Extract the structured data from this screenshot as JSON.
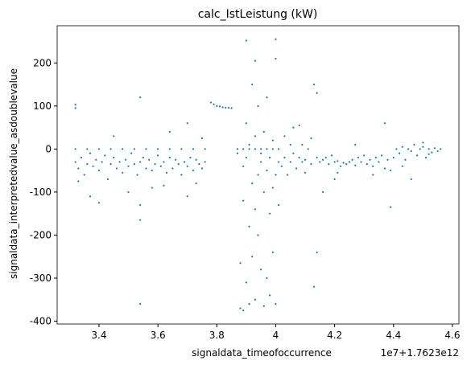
{
  "chart_data": {
    "type": "scatter",
    "title": "calc_IstLeistung (kW)",
    "x_label": "signaldata_timeofoccurrence",
    "y_label": "signaldata_interpretedvalue_asdoublevalue",
    "x_offset_label": "1e7+1.7623e12",
    "x": [
      3.32,
      3.33,
      3.34,
      3.35,
      3.36,
      3.37,
      3.38,
      3.39,
      3.4,
      3.41,
      3.42,
      3.43,
      3.44,
      3.45,
      3.46,
      3.47,
      3.48,
      3.49,
      3.5,
      3.51,
      3.52,
      3.53,
      3.54,
      3.55,
      3.56,
      3.57,
      3.58,
      3.59,
      3.6,
      3.61,
      3.62,
      3.63,
      3.64,
      3.65,
      3.66,
      3.67,
      3.68,
      3.69,
      3.7,
      3.71,
      3.72,
      3.73,
      3.74,
      3.75,
      3.76,
      3.32,
      3.36,
      3.4,
      3.44,
      3.48,
      3.52,
      3.56,
      3.6,
      3.64,
      3.68,
      3.72,
      3.76,
      3.32,
      3.32,
      3.33,
      3.37,
      3.4,
      3.45,
      3.5,
      3.54,
      3.54,
      3.54,
      3.54,
      3.58,
      3.62,
      3.64,
      3.7,
      3.7,
      3.73,
      3.75,
      3.78,
      3.79,
      3.8,
      3.81,
      3.82,
      3.83,
      3.84,
      3.85,
      3.87,
      3.89,
      3.91,
      3.93,
      3.95,
      3.97,
      3.99,
      4.01,
      3.87,
      3.88,
      3.88,
      3.89,
      3.89,
      3.89,
      3.9,
      3.9,
      3.9,
      3.9,
      3.91,
      3.91,
      3.91,
      3.92,
      3.92,
      3.92,
      3.93,
      3.93,
      3.93,
      3.93,
      3.94,
      3.94,
      3.94,
      3.95,
      3.95,
      3.95,
      3.96,
      3.96,
      3.97,
      3.97,
      3.97,
      3.98,
      3.98,
      3.98,
      3.99,
      3.99,
      4.0,
      4.0,
      4.0,
      4.0,
      4.01,
      4.01,
      3.99,
      3.96,
      4.02,
      4.03,
      4.03,
      4.04,
      4.05,
      4.05,
      4.06,
      4.06,
      4.07,
      4.08,
      4.08,
      4.09,
      4.09,
      4.1,
      4.1,
      4.11,
      4.12,
      4.12,
      4.13,
      4.13,
      4.14,
      4.14,
      4.14,
      4.15,
      4.16,
      4.17,
      4.18,
      4.19,
      4.2,
      4.21,
      4.22,
      4.23,
      4.24,
      4.25,
      4.26,
      4.27,
      4.28,
      4.29,
      4.3,
      4.31,
      4.32,
      4.33,
      4.34,
      4.35,
      4.36,
      4.37,
      4.38,
      4.39,
      4.4,
      4.16,
      4.21,
      4.27,
      4.33,
      4.39,
      4.37,
      4.2,
      4.41,
      4.42,
      4.43,
      4.44,
      4.45,
      4.46,
      4.47,
      4.48,
      4.49,
      4.5,
      4.51,
      4.52,
      4.53,
      4.54,
      4.55,
      4.56,
      4.43,
      4.46,
      4.5,
      4.52
    ],
    "values": [
      -30,
      -45,
      -20,
      -60,
      -35,
      -10,
      -40,
      -25,
      -50,
      -30,
      -15,
      -70,
      -35,
      -20,
      -45,
      -30,
      -55,
      -25,
      -40,
      -10,
      -35,
      -60,
      -30,
      -20,
      -45,
      -25,
      -50,
      -35,
      -15,
      -40,
      -30,
      -55,
      -20,
      -45,
      -25,
      -35,
      -60,
      -30,
      -40,
      -20,
      -50,
      -25,
      -35,
      -45,
      -30,
      0,
      0,
      0,
      0,
      0,
      0,
      0,
      0,
      0,
      0,
      0,
      0,
      103,
      95,
      -75,
      -110,
      -125,
      30,
      -100,
      120,
      -360,
      -165,
      -130,
      -90,
      -85,
      40,
      -110,
      60,
      -80,
      25,
      108,
      104,
      100,
      99,
      97,
      96,
      96,
      95,
      0,
      0,
      0,
      0,
      0,
      0,
      0,
      0,
      -10,
      -265,
      -370,
      -375,
      -120,
      -40,
      252,
      -20,
      -310,
      60,
      -180,
      -360,
      10,
      150,
      -80,
      -250,
      205,
      -140,
      30,
      -350,
      -60,
      -200,
      100,
      -10,
      -30,
      -280,
      40,
      -100,
      120,
      -300,
      -50,
      -150,
      -20,
      -340,
      -90,
      20,
      255,
      210,
      -360,
      -60,
      -30,
      -130,
      -240,
      -365,
      -40,
      30,
      -20,
      -60,
      10,
      -30,
      50,
      -10,
      -45,
      -20,
      55,
      -30,
      10,
      -25,
      -55,
      0,
      -35,
      25,
      150,
      -320,
      -240,
      130,
      -20,
      -30,
      -25,
      -20,
      -35,
      -15,
      -30,
      -28,
      -40,
      -32,
      -35,
      -30,
      -25,
      -38,
      -20,
      -30,
      -15,
      -35,
      -25,
      -40,
      -20,
      -30,
      -15,
      -45,
      -25,
      -50,
      -20,
      -100,
      -55,
      10,
      -60,
      -135,
      60,
      -70,
      0,
      -10,
      5,
      -25,
      0,
      -5,
      10,
      -15,
      0,
      5,
      -20,
      0,
      -8,
      2,
      -5,
      0,
      -40,
      -70,
      15,
      -12
    ],
    "color": "#1f77b4",
    "xlim": [
      3.258,
      4.622
    ],
    "ylim": [
      -406.5,
      286.5
    ],
    "xticks": [
      3.4,
      3.6,
      3.8,
      4.0,
      4.2,
      4.4,
      4.6
    ],
    "yticks": [
      -400,
      -300,
      -200,
      -100,
      0,
      100,
      200
    ]
  }
}
